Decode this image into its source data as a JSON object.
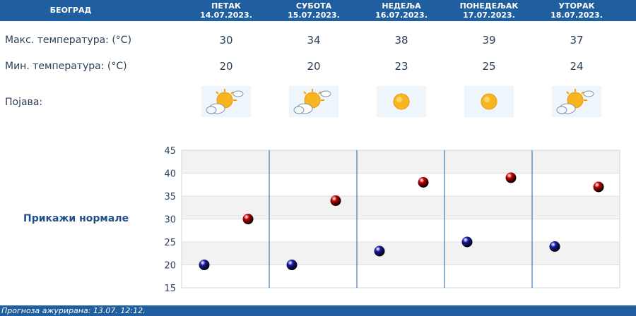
{
  "header": {
    "city": "БЕОГРАД",
    "days": [
      {
        "name": "ПЕТАК",
        "date": "14.07.2023."
      },
      {
        "name": "СУБОТА",
        "date": "15.07.2023."
      },
      {
        "name": "НЕДЕЉА",
        "date": "16.07.2023."
      },
      {
        "name": "ПОНЕДЕЉАК",
        "date": "17.07.2023."
      },
      {
        "name": "УТОРАК",
        "date": "18.07.2023."
      }
    ]
  },
  "rows": {
    "max_label": "Макс. температура: (°C)",
    "min_label": "Мин. температура: (°C)",
    "phenomenon_label": "Појава:",
    "max": [
      "30",
      "34",
      "38",
      "39",
      "37"
    ],
    "min": [
      "20",
      "20",
      "23",
      "25",
      "24"
    ],
    "icons": [
      "partly-cloudy-icon",
      "partly-cloudy-icon",
      "sunny-icon",
      "sunny-icon",
      "partly-cloudy-icon"
    ]
  },
  "normals_button": "Прикажи нормале",
  "footer": {
    "updated": "Прогноза ажурирана:  13.07. 12:12."
  },
  "chart_data": {
    "type": "scatter",
    "y_ticks": [
      "45",
      "40",
      "35",
      "30",
      "25",
      "20",
      "15"
    ],
    "ylim": [
      15,
      45
    ],
    "categories": [
      "14.07.2023.",
      "15.07.2023.",
      "16.07.2023.",
      "17.07.2023.",
      "18.07.2023."
    ],
    "series": [
      {
        "values": [
          20,
          20,
          23,
          25,
          24
        ],
        "color": "#1a1aa8"
      },
      {
        "values": [
          30,
          34,
          38,
          39,
          37
        ],
        "color": "#c40000"
      }
    ],
    "grid": true
  }
}
